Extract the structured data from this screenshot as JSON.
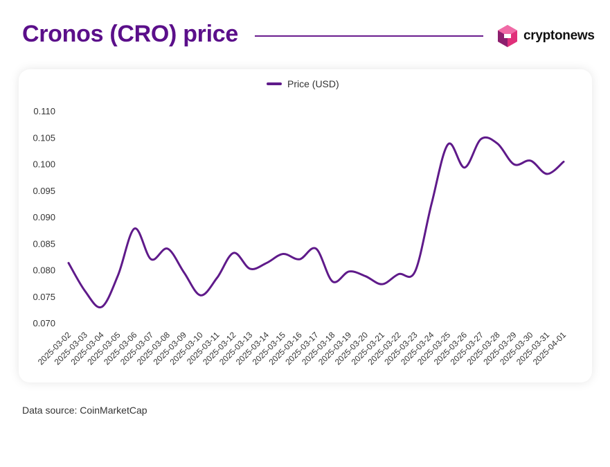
{
  "header": {
    "title": "Cronos (CRO) price",
    "brand_name": "cryptonews",
    "brand_icon": "cryptonews-logo-icon"
  },
  "footer": {
    "source": "Data source: CoinMarketCap"
  },
  "colors": {
    "title": "#5b0f8a",
    "line": "#5f1a8a",
    "rule": "#6a1b8e"
  },
  "chart_data": {
    "type": "line",
    "legend_position": "top-center",
    "grid": false,
    "ylim": [
      0.07,
      0.11
    ],
    "y_ticks": [
      "0.110",
      "0.105",
      "0.100",
      "0.095",
      "0.090",
      "0.085",
      "0.080",
      "0.075",
      "0.070"
    ],
    "x": [
      "2025-03-02",
      "2025-03-03",
      "2025-03-04",
      "2025-03-05",
      "2025-03-06",
      "2025-03-07",
      "2025-03-08",
      "2025-03-09",
      "2025-03-10",
      "2025-03-11",
      "2025-03-12",
      "2025-03-13",
      "2025-03-14",
      "2025-03-15",
      "2025-03-16",
      "2025-03-17",
      "2025-03-18",
      "2025-03-19",
      "2025-03-20",
      "2025-03-21",
      "2025-03-22",
      "2025-03-23",
      "2025-03-24",
      "2025-03-25",
      "2025-03-26",
      "2025-03-27",
      "2025-03-28",
      "2025-03-29",
      "2025-03-30",
      "2025-03-31",
      "2025-04-01"
    ],
    "series": [
      {
        "name": "Price (USD)",
        "values": [
          0.0813,
          0.076,
          0.073,
          0.079,
          0.0878,
          0.082,
          0.084,
          0.0795,
          0.0752,
          0.0785,
          0.0832,
          0.0802,
          0.0813,
          0.083,
          0.082,
          0.084,
          0.0778,
          0.0797,
          0.0788,
          0.0773,
          0.0792,
          0.0797,
          0.0925,
          0.1037,
          0.0993,
          0.1047,
          0.1038,
          0.0999,
          0.1006,
          0.0981,
          0.1004
        ]
      }
    ]
  }
}
